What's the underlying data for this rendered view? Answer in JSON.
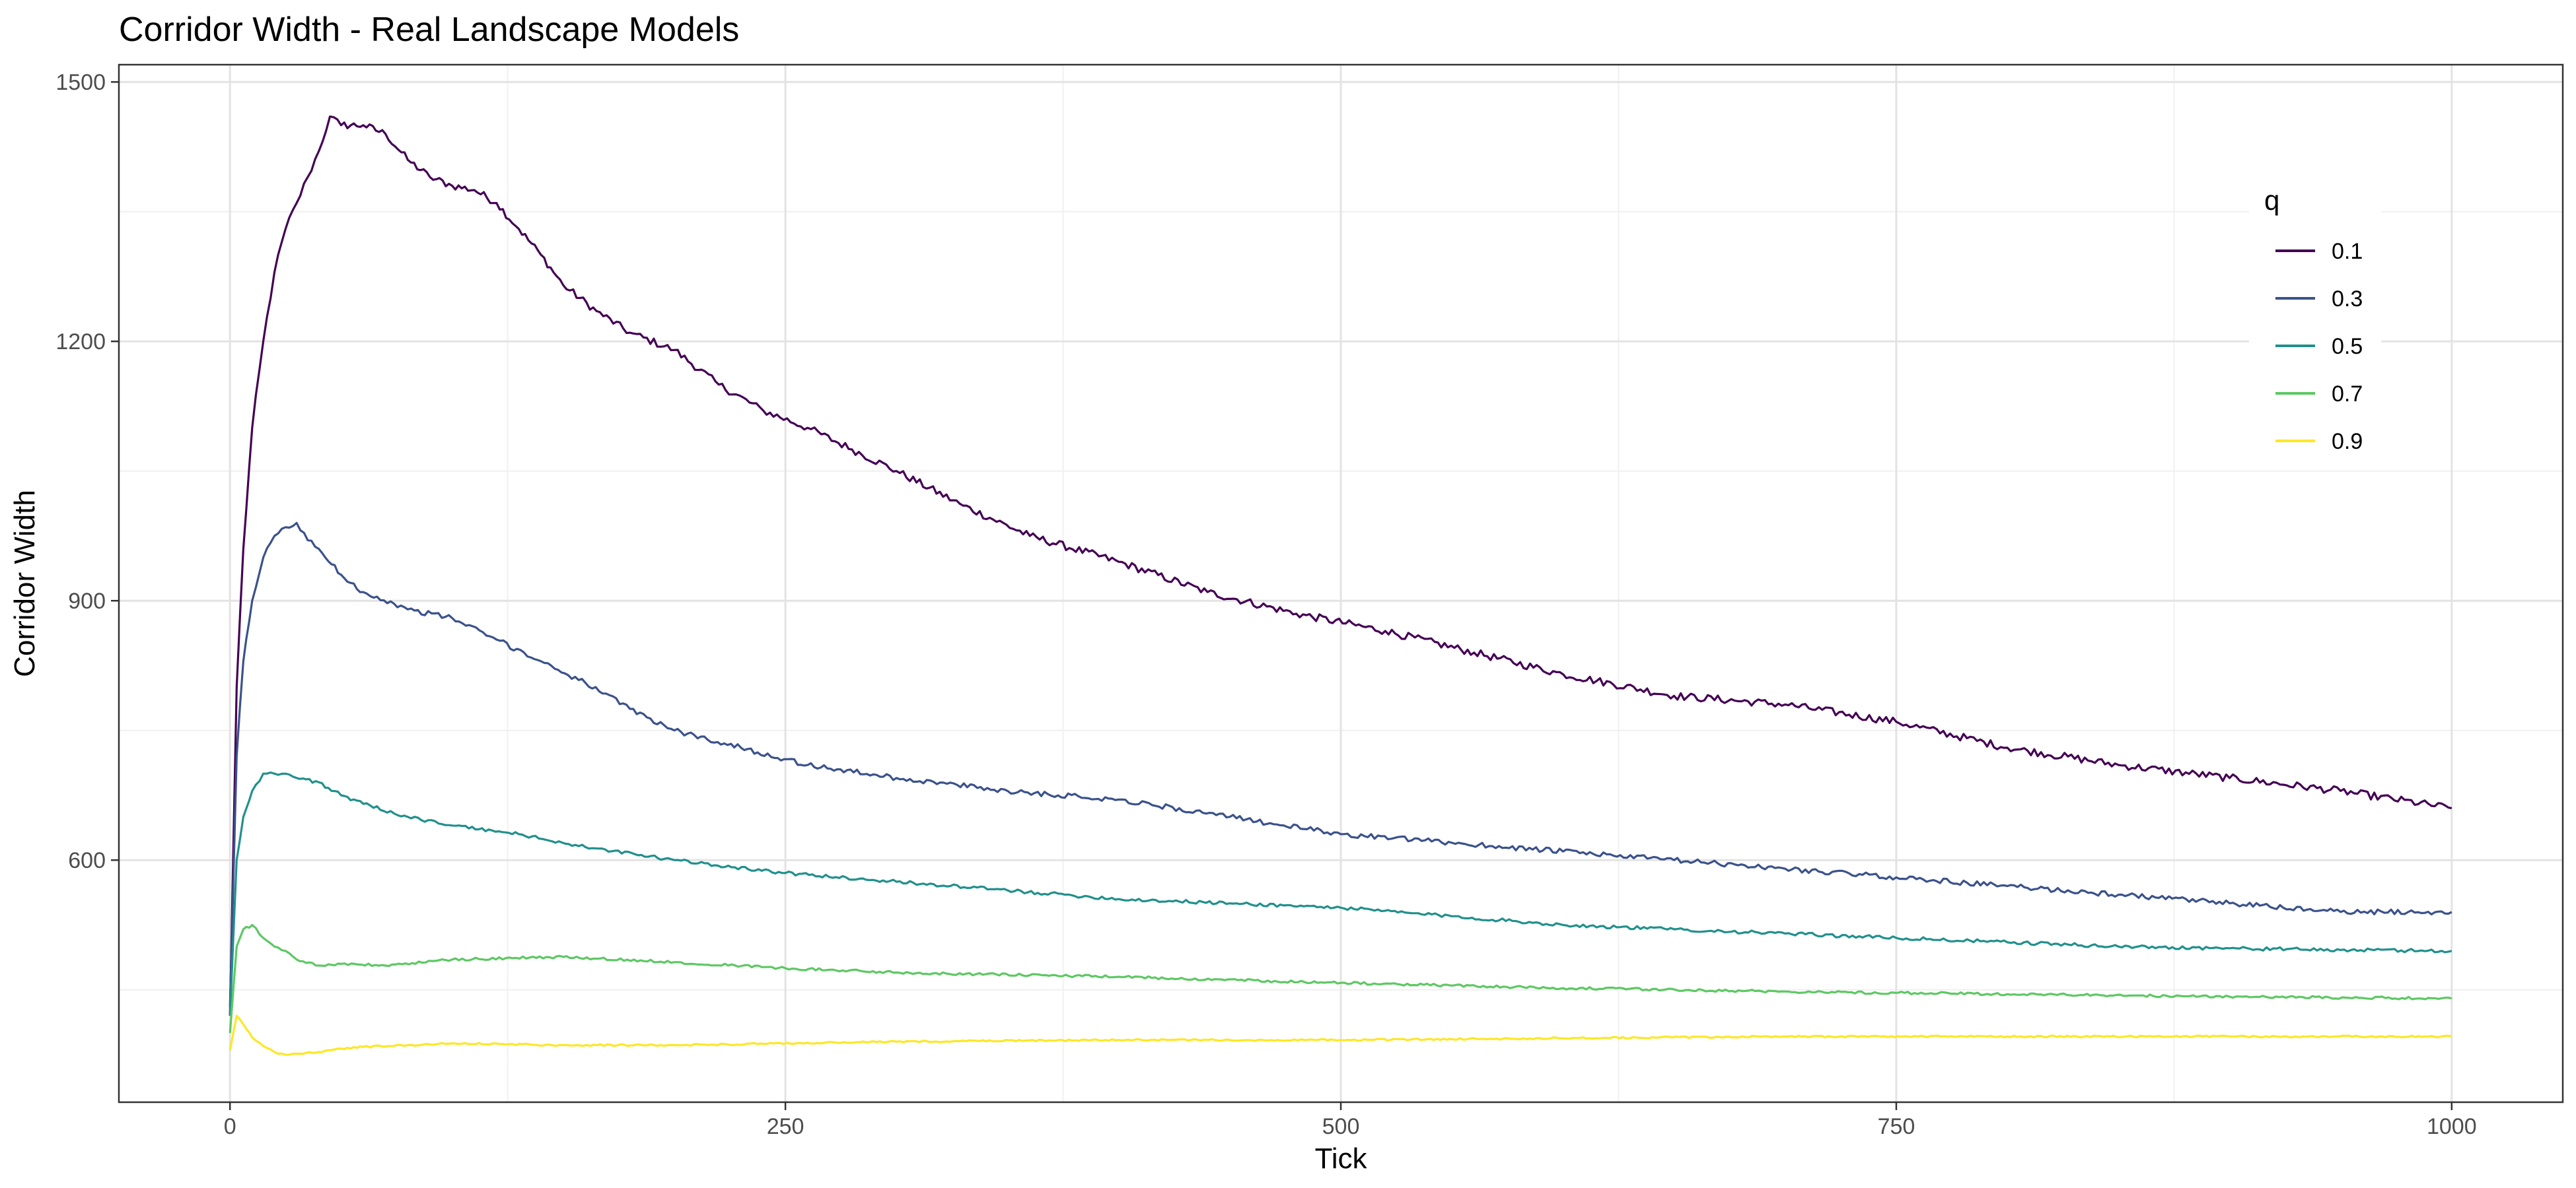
{
  "chart_data": {
    "type": "line",
    "title": "Corridor Width - Real Landscape Models",
    "xlabel": "Tick",
    "ylabel": "Corridor Width",
    "xlim": [
      -50,
      1050
    ],
    "ylim": [
      320,
      1520
    ],
    "x_ticks": [
      0,
      250,
      500,
      750,
      1000
    ],
    "x_tick_labels": [
      "0",
      "250",
      "500",
      "750",
      "1000"
    ],
    "y_ticks": [
      600,
      900,
      1200,
      1500
    ],
    "y_tick_labels": [
      "600",
      "900",
      "1200",
      "1500"
    ],
    "grid": true,
    "legend": {
      "title": "q",
      "position": "top-right, inside plot"
    },
    "series": [
      {
        "name": "0.1",
        "color": "#440154",
        "x": [
          0,
          3,
          6,
          10,
          15,
          20,
          25,
          30,
          35,
          40,
          45,
          50,
          60,
          70,
          80,
          90,
          100,
          110,
          120,
          130,
          140,
          150,
          165,
          180,
          200,
          220,
          240,
          260,
          280,
          300,
          330,
          360,
          400,
          440,
          480,
          520,
          560,
          600,
          650,
          700,
          750,
          800,
          850,
          900,
          950,
          1000
        ],
        "y": [
          420,
          800,
          960,
          1100,
          1200,
          1280,
          1330,
          1360,
          1390,
          1420,
          1460,
          1450,
          1450,
          1440,
          1410,
          1390,
          1380,
          1375,
          1360,
          1330,
          1300,
          1265,
          1235,
          1210,
          1190,
          1150,
          1120,
          1100,
          1075,
          1050,
          1010,
          975,
          945,
          910,
          885,
          865,
          840,
          815,
          790,
          780,
          760,
          730,
          710,
          695,
          680,
          660
        ]
      },
      {
        "name": "0.3",
        "color": "#3b528b",
        "x": [
          0,
          3,
          6,
          10,
          15,
          20,
          25,
          30,
          35,
          40,
          50,
          60,
          80,
          100,
          120,
          140,
          160,
          180,
          200,
          230,
          260,
          300,
          350,
          400,
          450,
          500,
          550,
          600,
          650,
          700,
          750,
          800,
          850,
          900,
          950,
          1000
        ],
        "y": [
          430,
          720,
          830,
          900,
          950,
          975,
          985,
          990,
          970,
          960,
          930,
          910,
          890,
          880,
          855,
          830,
          805,
          775,
          750,
          730,
          710,
          695,
          680,
          670,
          650,
          630,
          620,
          610,
          600,
          590,
          580,
          570,
          560,
          550,
          540,
          540
        ]
      },
      {
        "name": "0.5",
        "color": "#21908c",
        "x": [
          0,
          3,
          6,
          10,
          15,
          20,
          25,
          30,
          40,
          50,
          60,
          80,
          100,
          130,
          160,
          200,
          250,
          300,
          350,
          400,
          450,
          500,
          550,
          600,
          650,
          700,
          750,
          800,
          850,
          900,
          950,
          1000
        ],
        "y": [
          420,
          600,
          650,
          680,
          700,
          700,
          700,
          695,
          690,
          675,
          665,
          650,
          640,
          630,
          615,
          600,
          585,
          575,
          565,
          555,
          550,
          545,
          535,
          525,
          520,
          515,
          510,
          505,
          500,
          498,
          496,
          495
        ]
      },
      {
        "name": "0.7",
        "color": "#5dc863",
        "x": [
          0,
          3,
          6,
          10,
          15,
          20,
          25,
          30,
          40,
          50,
          70,
          100,
          150,
          200,
          250,
          300,
          400,
          500,
          600,
          700,
          800,
          900,
          1000
        ],
        "y": [
          400,
          500,
          520,
          525,
          510,
          500,
          495,
          485,
          478,
          480,
          478,
          485,
          488,
          482,
          475,
          470,
          465,
          458,
          452,
          448,
          445,
          442,
          440
        ]
      },
      {
        "name": "0.9",
        "color": "#fde725",
        "x": [
          0,
          3,
          6,
          10,
          15,
          20,
          25,
          30,
          40,
          50,
          60,
          80,
          100,
          150,
          200,
          300,
          400,
          500,
          600,
          700,
          800,
          900,
          1000
        ],
        "y": [
          380,
          420,
          410,
          395,
          385,
          378,
          375,
          376,
          378,
          382,
          384,
          386,
          388,
          386,
          386,
          390,
          392,
          392,
          394,
          396,
          396,
          396,
          396
        ]
      }
    ]
  }
}
